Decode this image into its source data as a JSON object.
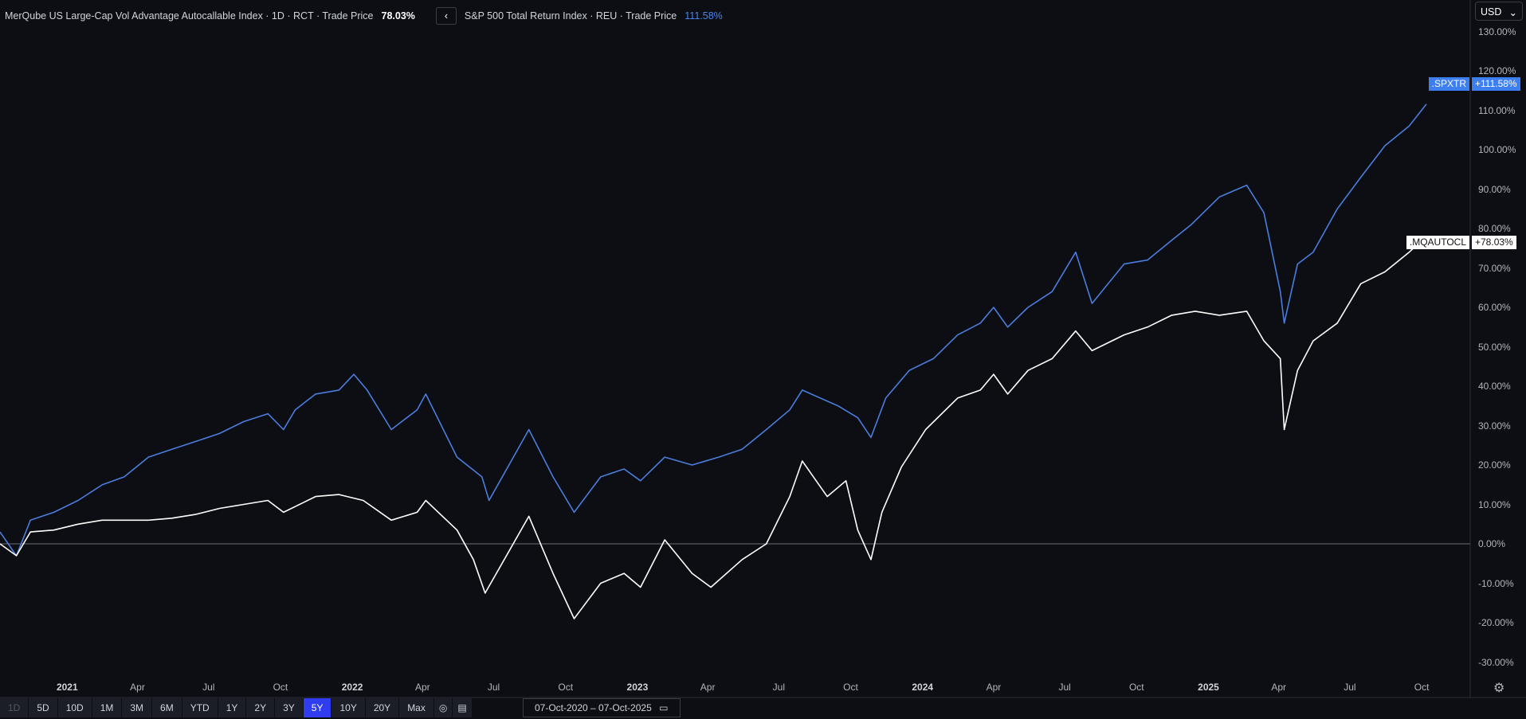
{
  "header": {
    "series1_title": "MerQube US Large-Cap Vol Advantage Autocallable Index · 1D · RCT · Trade Price",
    "series1_value": "78.03%",
    "back_icon": "chevron-left-icon",
    "series2_title": "S&P 500 Total Return Index · REU · Trade Price",
    "series2_value": "111.58%"
  },
  "currency": {
    "selected": "USD"
  },
  "y_axis": [
    "130.00%",
    "120.00%",
    "110.00%",
    "100.00%",
    "90.00%",
    "80.00%",
    "70.00%",
    "60.00%",
    "50.00%",
    "40.00%",
    "30.00%",
    "20.00%",
    "10.00%",
    "0.00%",
    "-10.00%",
    "-20.00%",
    "-30.00%"
  ],
  "x_axis": [
    {
      "label": "2021",
      "date": "2021-01-01",
      "year": true
    },
    {
      "label": "Apr",
      "date": "2021-04-01"
    },
    {
      "label": "Jul",
      "date": "2021-07-01"
    },
    {
      "label": "Oct",
      "date": "2021-10-01"
    },
    {
      "label": "2022",
      "date": "2022-01-01",
      "year": true
    },
    {
      "label": "Apr",
      "date": "2022-04-01"
    },
    {
      "label": "Jul",
      "date": "2022-07-01"
    },
    {
      "label": "Oct",
      "date": "2022-10-01"
    },
    {
      "label": "2023",
      "date": "2023-01-01",
      "year": true
    },
    {
      "label": "Apr",
      "date": "2023-04-01"
    },
    {
      "label": "Jul",
      "date": "2023-07-01"
    },
    {
      "label": "Oct",
      "date": "2023-10-01"
    },
    {
      "label": "2024",
      "date": "2024-01-01",
      "year": true
    },
    {
      "label": "Apr",
      "date": "2024-04-01"
    },
    {
      "label": "Jul",
      "date": "2024-07-01"
    },
    {
      "label": "Oct",
      "date": "2024-10-01"
    },
    {
      "label": "2025",
      "date": "2025-01-01",
      "year": true
    },
    {
      "label": "Apr",
      "date": "2025-04-01"
    },
    {
      "label": "Jul",
      "date": "2025-07-01"
    },
    {
      "label": "Oct",
      "date": "2025-10-01"
    }
  ],
  "tags": {
    "spx_name": ".SPXTR",
    "spx_value": "+111.58%",
    "mq_name": ".MQAUTOCL",
    "mq_value": "+78.03%"
  },
  "ranges": [
    "1D",
    "5D",
    "10D",
    "1M",
    "3M",
    "6M",
    "YTD",
    "1Y",
    "2Y",
    "3Y",
    "5Y",
    "10Y",
    "20Y",
    "Max"
  ],
  "active_range": "5Y",
  "date_range": "07-Oct-2020  –  07-Oct-2025",
  "chart_data": {
    "type": "line",
    "ylim": [
      -33,
      133
    ],
    "xlim": [
      "2020-10-07",
      "2025-10-07"
    ],
    "series": [
      {
        "name": ".SPXTR",
        "color": "#4a7ddc",
        "points": [
          [
            "2020-10-07",
            3
          ],
          [
            "2020-10-28",
            -3
          ],
          [
            "2020-11-15",
            6
          ],
          [
            "2020-12-15",
            8
          ],
          [
            "2021-01-15",
            11
          ],
          [
            "2021-02-15",
            15
          ],
          [
            "2021-03-15",
            17
          ],
          [
            "2021-04-15",
            22
          ],
          [
            "2021-05-15",
            24
          ],
          [
            "2021-06-15",
            26
          ],
          [
            "2021-07-15",
            28
          ],
          [
            "2021-08-15",
            31
          ],
          [
            "2021-09-15",
            33
          ],
          [
            "2021-10-05",
            29
          ],
          [
            "2021-10-20",
            34
          ],
          [
            "2021-11-15",
            38
          ],
          [
            "2021-12-15",
            39
          ],
          [
            "2022-01-03",
            43
          ],
          [
            "2022-01-20",
            39
          ],
          [
            "2022-02-20",
            29
          ],
          [
            "2022-03-25",
            34
          ],
          [
            "2022-04-05",
            38
          ],
          [
            "2022-05-15",
            22
          ],
          [
            "2022-06-16",
            17
          ],
          [
            "2022-06-25",
            11
          ],
          [
            "2022-08-15",
            29
          ],
          [
            "2022-09-15",
            17
          ],
          [
            "2022-10-12",
            8
          ],
          [
            "2022-11-15",
            17
          ],
          [
            "2022-12-15",
            19
          ],
          [
            "2023-01-05",
            16
          ],
          [
            "2023-02-05",
            22
          ],
          [
            "2023-03-12",
            20
          ],
          [
            "2023-04-15",
            22
          ],
          [
            "2023-05-15",
            24
          ],
          [
            "2023-06-15",
            29
          ],
          [
            "2023-07-15",
            34
          ],
          [
            "2023-07-31",
            39
          ],
          [
            "2023-09-15",
            35
          ],
          [
            "2023-10-10",
            32
          ],
          [
            "2023-10-27",
            27
          ],
          [
            "2023-11-15",
            37
          ],
          [
            "2023-12-15",
            44
          ],
          [
            "2024-01-15",
            47
          ],
          [
            "2024-02-15",
            53
          ],
          [
            "2024-03-15",
            56
          ],
          [
            "2024-04-01",
            60
          ],
          [
            "2024-04-19",
            55
          ],
          [
            "2024-05-15",
            60
          ],
          [
            "2024-06-15",
            64
          ],
          [
            "2024-07-15",
            74
          ],
          [
            "2024-08-05",
            61
          ],
          [
            "2024-09-15",
            71
          ],
          [
            "2024-10-15",
            72
          ],
          [
            "2024-11-15",
            77
          ],
          [
            "2024-12-10",
            81
          ],
          [
            "2025-01-15",
            88
          ],
          [
            "2025-02-19",
            91
          ],
          [
            "2025-03-13",
            84
          ],
          [
            "2025-04-03",
            64
          ],
          [
            "2025-04-08",
            56
          ],
          [
            "2025-04-25",
            71
          ],
          [
            "2025-05-15",
            74
          ],
          [
            "2025-06-15",
            85
          ],
          [
            "2025-07-15",
            93
          ],
          [
            "2025-08-15",
            101
          ],
          [
            "2025-09-15",
            106
          ],
          [
            "2025-10-07",
            111.58
          ]
        ]
      },
      {
        "name": ".MQAUTOCL",
        "color": "#ffffff",
        "points": [
          [
            "2020-10-07",
            0
          ],
          [
            "2020-10-28",
            -3
          ],
          [
            "2020-11-15",
            3
          ],
          [
            "2020-12-15",
            3.5
          ],
          [
            "2021-01-15",
            5
          ],
          [
            "2021-02-15",
            6
          ],
          [
            "2021-04-15",
            6
          ],
          [
            "2021-05-15",
            6.5
          ],
          [
            "2021-06-15",
            7.5
          ],
          [
            "2021-07-15",
            9
          ],
          [
            "2021-08-15",
            10
          ],
          [
            "2021-09-15",
            11
          ],
          [
            "2021-10-05",
            8
          ],
          [
            "2021-11-15",
            12
          ],
          [
            "2021-12-15",
            12.5
          ],
          [
            "2022-01-15",
            11
          ],
          [
            "2022-02-20",
            6
          ],
          [
            "2022-03-25",
            8
          ],
          [
            "2022-04-05",
            11
          ],
          [
            "2022-05-15",
            3.5
          ],
          [
            "2022-06-05",
            -4
          ],
          [
            "2022-06-20",
            -12.5
          ],
          [
            "2022-08-15",
            7
          ],
          [
            "2022-09-15",
            -7.5
          ],
          [
            "2022-10-12",
            -19
          ],
          [
            "2022-11-15",
            -10
          ],
          [
            "2022-12-15",
            -7.5
          ],
          [
            "2023-01-05",
            -11
          ],
          [
            "2023-02-05",
            1
          ],
          [
            "2023-03-12",
            -7.5
          ],
          [
            "2023-04-05",
            -11
          ],
          [
            "2023-05-15",
            -4
          ],
          [
            "2023-06-15",
            0
          ],
          [
            "2023-07-15",
            12
          ],
          [
            "2023-07-31",
            21
          ],
          [
            "2023-09-01",
            12
          ],
          [
            "2023-09-25",
            16
          ],
          [
            "2023-10-10",
            3.5
          ],
          [
            "2023-10-27",
            -4
          ],
          [
            "2023-11-10",
            8
          ],
          [
            "2023-12-05",
            19.5
          ],
          [
            "2024-01-05",
            29
          ],
          [
            "2024-02-15",
            37
          ],
          [
            "2024-03-15",
            39
          ],
          [
            "2024-04-01",
            43
          ],
          [
            "2024-04-19",
            38
          ],
          [
            "2024-05-15",
            44
          ],
          [
            "2024-06-15",
            47
          ],
          [
            "2024-07-15",
            54
          ],
          [
            "2024-08-05",
            49
          ],
          [
            "2024-09-15",
            53
          ],
          [
            "2024-10-15",
            55
          ],
          [
            "2024-11-15",
            58
          ],
          [
            "2024-12-15",
            59
          ],
          [
            "2025-01-15",
            58
          ],
          [
            "2025-02-19",
            59
          ],
          [
            "2025-03-13",
            51.5
          ],
          [
            "2025-04-03",
            47
          ],
          [
            "2025-04-08",
            29
          ],
          [
            "2025-04-25",
            44
          ],
          [
            "2025-05-15",
            51.5
          ],
          [
            "2025-06-15",
            56
          ],
          [
            "2025-07-15",
            66
          ],
          [
            "2025-08-15",
            69
          ],
          [
            "2025-09-15",
            74
          ],
          [
            "2025-10-07",
            78.03
          ]
        ]
      }
    ]
  }
}
